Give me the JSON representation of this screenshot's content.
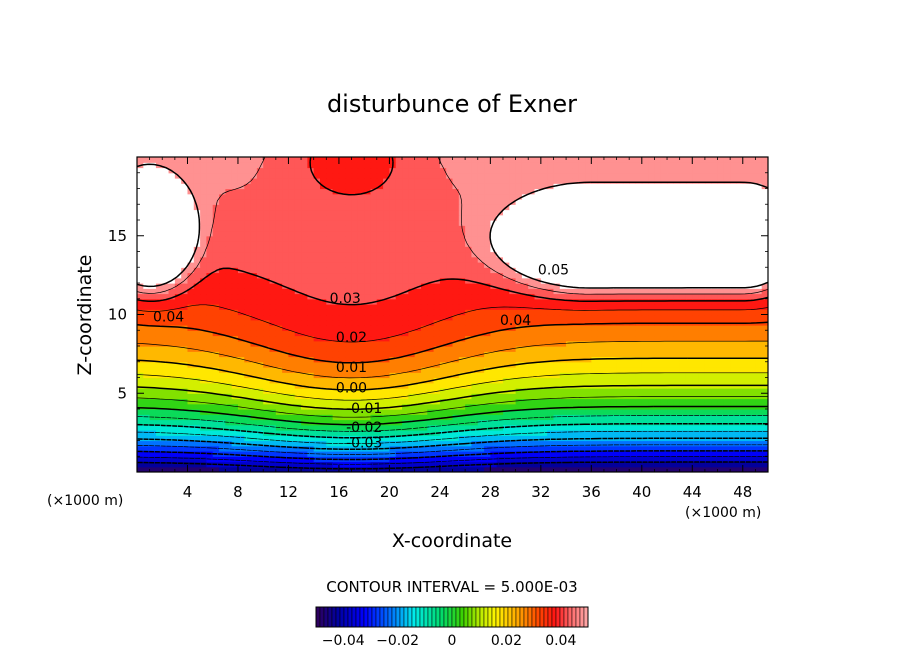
{
  "chart_data": {
    "type": "heatmap",
    "title": "disturbunce of Exner",
    "xlabel": "X-coordinate",
    "ylabel": "Z-coordinate",
    "x_unit_left": "(×1000 m)",
    "x_unit_right": "(×1000 m)",
    "xlim": [
      0,
      50
    ],
    "ylim": [
      0,
      20
    ],
    "x_ticks": [
      "4",
      "8",
      "12",
      "16",
      "20",
      "24",
      "28",
      "32",
      "36",
      "40",
      "44",
      "48"
    ],
    "y_ticks": [
      "5",
      "10",
      "15"
    ],
    "contour_interval_text": "CONTOUR INTERVAL = 5.000E-03",
    "contour_levels": [
      -0.04,
      -0.035,
      -0.03,
      -0.025,
      -0.02,
      -0.015,
      -0.01,
      -0.005,
      0.0,
      0.005,
      0.01,
      0.015,
      0.02,
      0.025,
      0.03,
      0.035,
      0.04,
      0.045,
      0.05
    ],
    "labeled_contours": [
      {
        "value": 0.04,
        "text": "0.04",
        "x": 2.5,
        "y": 9.8
      },
      {
        "value": 0.03,
        "text": "0.03",
        "x": 16.5,
        "y": 11.0
      },
      {
        "value": 0.02,
        "text": "0.02",
        "x": 17.0,
        "y": 8.5
      },
      {
        "value": 0.01,
        "text": "0.01",
        "x": 17.0,
        "y": 6.6
      },
      {
        "value": 0.0,
        "text": "0.00",
        "x": 17.0,
        "y": 5.3
      },
      {
        "value": -0.01,
        "text": "-0.01",
        "x": 18.0,
        "y": 4.0
      },
      {
        "value": -0.02,
        "text": "-0.02",
        "x": 18.0,
        "y": 2.8
      },
      {
        "value": -0.03,
        "text": "-0.03",
        "x": 18.0,
        "y": 1.8
      },
      {
        "value": 0.04,
        "text": "0.04",
        "x": 30.0,
        "y": 9.6
      },
      {
        "value": 0.05,
        "text": "0.05",
        "x": 33.0,
        "y": 12.8
      }
    ],
    "colorbar": {
      "range": [
        -0.05,
        0.05
      ],
      "tick_values": [
        -0.04,
        -0.02,
        0,
        0.02,
        0.04
      ],
      "tick_labels": [
        "−0.04",
        "−0.02",
        "0",
        "0.02",
        "0.04"
      ]
    }
  }
}
